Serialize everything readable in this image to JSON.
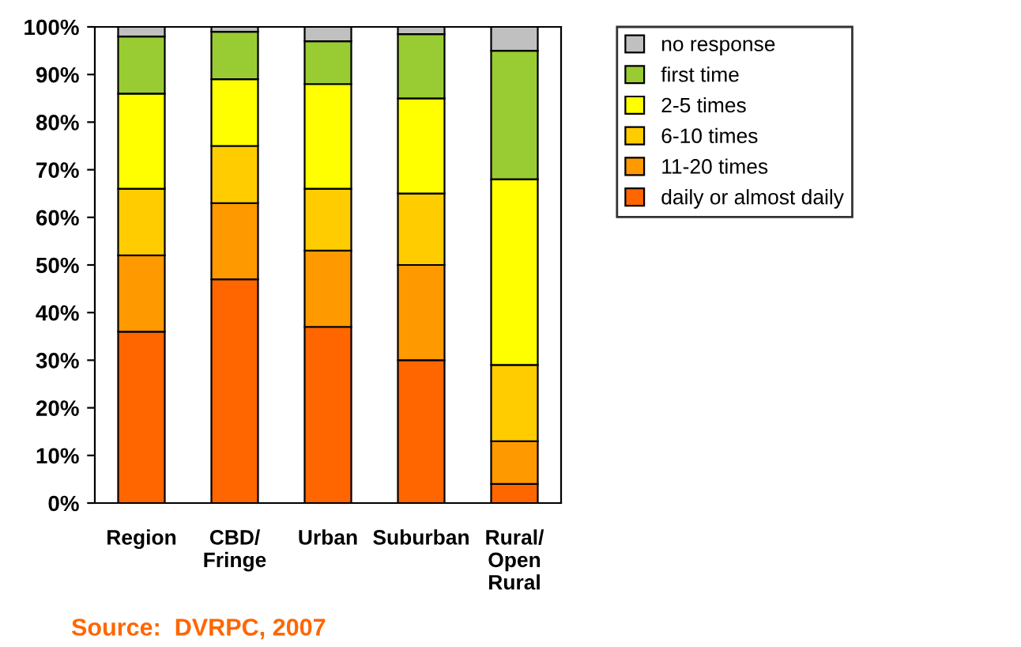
{
  "chart_data": {
    "type": "bar",
    "stacked": true,
    "categories": [
      "Region",
      "CBD/\nFringe",
      "Urban",
      "Suburban",
      "Rural/\nOpen\nRural"
    ],
    "series": [
      {
        "name": "daily or almost daily",
        "color": "#ff6600",
        "values": [
          36,
          47,
          37,
          30,
          4
        ]
      },
      {
        "name": "11-20 times",
        "color": "#ff9900",
        "values": [
          16,
          16,
          16,
          20,
          9
        ]
      },
      {
        "name": "6-10 times",
        "color": "#ffcc00",
        "values": [
          14,
          12,
          13,
          15,
          16
        ]
      },
      {
        "name": "2-5 times",
        "color": "#ffff00",
        "values": [
          20,
          14,
          22,
          20,
          39
        ]
      },
      {
        "name": "first time",
        "color": "#99cc33",
        "values": [
          12,
          10,
          9,
          13.5,
          27
        ]
      },
      {
        "name": "no response",
        "color": "#c0c0c0",
        "values": [
          2,
          1,
          3,
          1.5,
          5
        ]
      }
    ],
    "ylim": [
      0,
      100
    ],
    "yticks": [
      {
        "value": 0,
        "label": "0%"
      },
      {
        "value": 10,
        "label": "10%"
      },
      {
        "value": 20,
        "label": "20%"
      },
      {
        "value": 30,
        "label": "30%"
      },
      {
        "value": 40,
        "label": "40%"
      },
      {
        "value": 50,
        "label": "50%"
      },
      {
        "value": 60,
        "label": "60%"
      },
      {
        "value": 70,
        "label": "70%"
      },
      {
        "value": 80,
        "label": "80%"
      },
      {
        "value": 90,
        "label": "90%"
      },
      {
        "value": 100,
        "label": "100%"
      }
    ],
    "legend": "right",
    "grid": false,
    "annotations": [
      "Source:  DVRPC, 2007"
    ]
  }
}
